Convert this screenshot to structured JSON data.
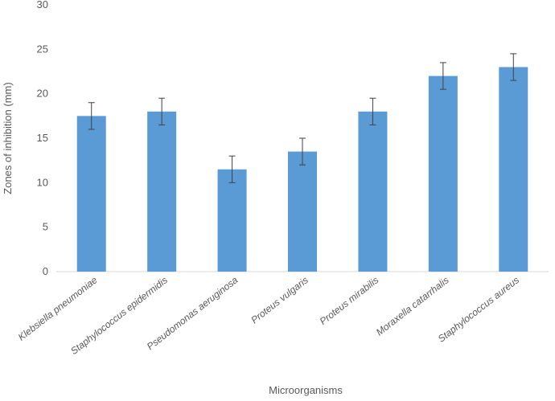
{
  "chart_data": {
    "type": "bar",
    "categories": [
      "Klebsiella pneumoniae",
      "Staphylococcus epidermidis",
      "Pseudomonas aeruginosa",
      "Proteus vulgaris",
      "Proteus mirabilis",
      "Moraxella catarrhalis",
      "Staphylococcus aureus"
    ],
    "values": [
      17.5,
      18.0,
      11.5,
      13.5,
      18.0,
      22.0,
      23.0
    ],
    "error": [
      1.5,
      1.5,
      1.5,
      1.5,
      1.5,
      1.5,
      1.5
    ],
    "xlabel": "Microorganisms",
    "ylabel": "Zones of inhibition (mm)",
    "ylim": [
      0,
      30
    ],
    "yticks": [
      0,
      5,
      10,
      15,
      20,
      25,
      30
    ],
    "grid": false,
    "bar_color": "#5b9bd5",
    "axis_color": "#d9d9d9",
    "errorbar_color": "#404040"
  }
}
